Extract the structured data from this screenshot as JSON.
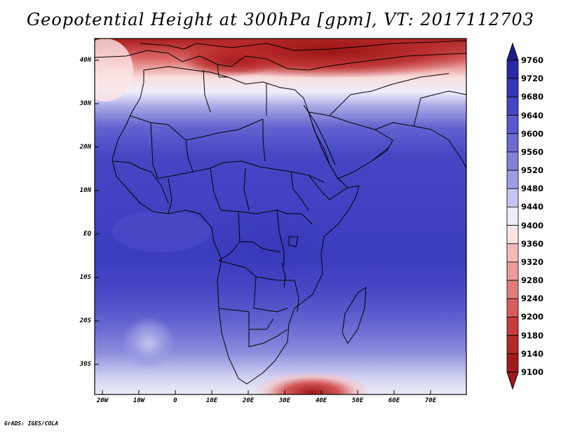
{
  "title": "Geopotential Height at 300hPa [gpm], VT: 2017112703",
  "credit": "GrADS: IGES/COLA",
  "lat_labels": [
    "40N",
    "30N",
    "20N",
    "10N",
    "EQ",
    "10S",
    "20S",
    "30S"
  ],
  "lon_labels": [
    "20W",
    "10W",
    "0",
    "10E",
    "20E",
    "30E",
    "40E",
    "50E",
    "60E",
    "70E"
  ],
  "colorbar": {
    "levels": [
      "9760",
      "9720",
      "9680",
      "9640",
      "9600",
      "9560",
      "9520",
      "9480",
      "9440",
      "9400",
      "9360",
      "9320",
      "9280",
      "9240",
      "9200",
      "9180",
      "9140",
      "9100"
    ],
    "colors": [
      "#1d1d8f",
      "#2a2aa6",
      "#3535bb",
      "#4646c6",
      "#5959cc",
      "#6b6bd2",
      "#8282da",
      "#9d9de3",
      "#c4c4ef",
      "#ececfa",
      "#fbe3e3",
      "#f4baba",
      "#ec9a9a",
      "#e07b7b",
      "#d85c5c",
      "#c83c3c",
      "#b72626",
      "#a21a1a"
    ]
  },
  "map": {
    "projection": "lat-lon",
    "lon_range": [
      -22,
      80
    ],
    "lat_range": [
      -37,
      45
    ]
  }
}
